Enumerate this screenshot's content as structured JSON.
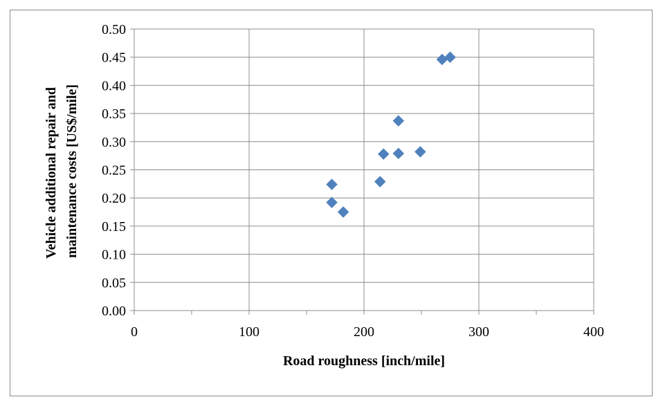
{
  "chart_data": {
    "type": "scatter",
    "title": "",
    "xlabel": "Road roughness [inch/mile]",
    "ylabel_lines": [
      "Vehicle additional repair and",
      "maintenance costs [US$/mile]"
    ],
    "xlim": [
      0,
      400
    ],
    "ylim": [
      0,
      0.5
    ],
    "x_ticks": [
      0,
      100,
      200,
      300,
      400
    ],
    "x_tick_labels": [
      "0",
      "100",
      "200",
      "300",
      "400"
    ],
    "y_ticks": [
      0,
      0.05,
      0.1,
      0.15,
      0.2,
      0.25,
      0.3,
      0.35,
      0.4,
      0.45,
      0.5
    ],
    "y_tick_labels": [
      "0.00",
      "0.05",
      "0.10",
      "0.15",
      "0.20",
      "0.25",
      "0.30",
      "0.35",
      "0.40",
      "0.45",
      "0.50"
    ],
    "grid": true,
    "legend": "none",
    "series": [
      {
        "marker": "diamond",
        "color": "#4f81bd",
        "points": [
          {
            "x": 172,
            "y": 0.224
          },
          {
            "x": 172,
            "y": 0.192
          },
          {
            "x": 182,
            "y": 0.175
          },
          {
            "x": 214,
            "y": 0.229
          },
          {
            "x": 217,
            "y": 0.278
          },
          {
            "x": 230,
            "y": 0.279
          },
          {
            "x": 230,
            "y": 0.337
          },
          {
            "x": 249,
            "y": 0.282
          },
          {
            "x": 268,
            "y": 0.446
          },
          {
            "x": 275,
            "y": 0.45
          }
        ]
      }
    ]
  }
}
